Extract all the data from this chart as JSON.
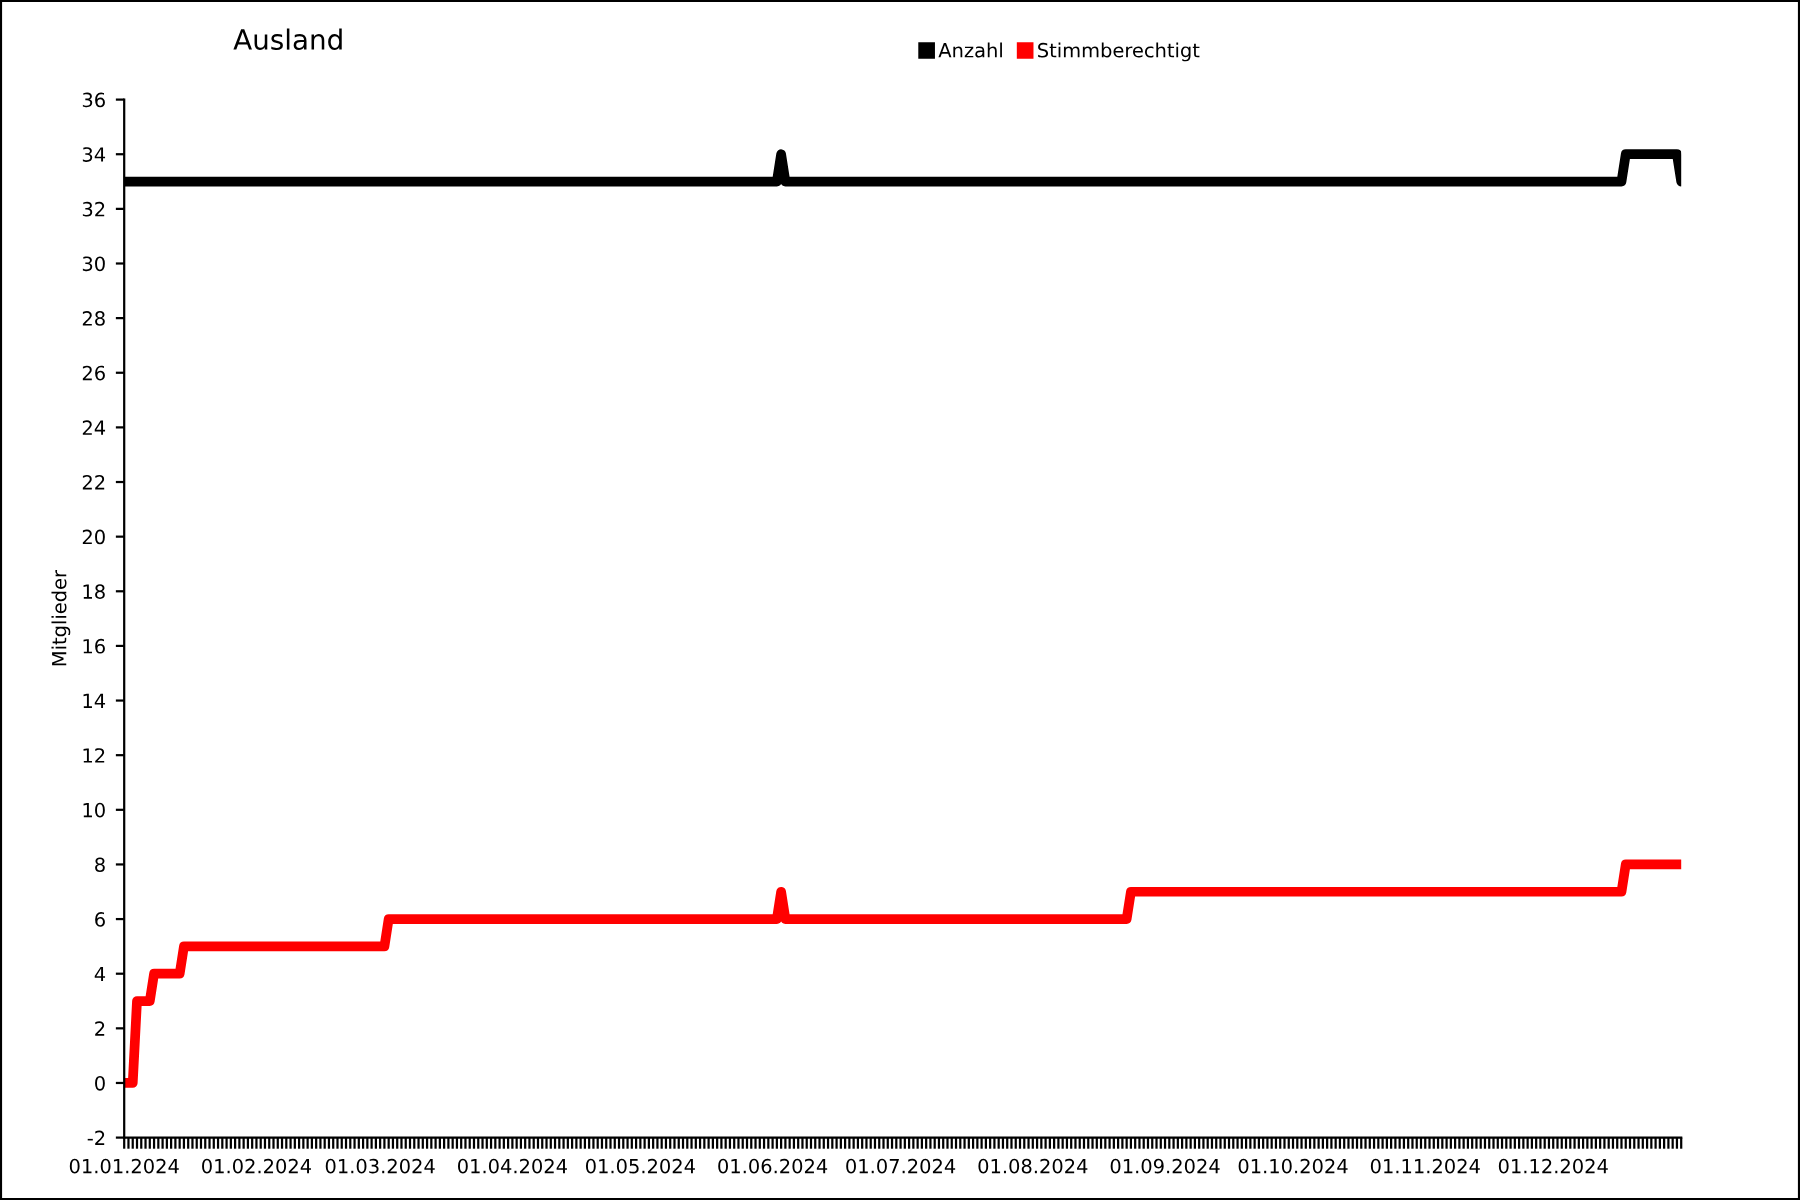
{
  "chart_data": {
    "type": "line",
    "title": "Ausland",
    "ylabel": "Mitglieder",
    "legend": "top",
    "grid": false,
    "line_style": "solid",
    "xlim": [
      "2024-01-01",
      "2024-12-31"
    ],
    "xticks": [
      {
        "value": "2024-01-01",
        "label": "01.01.2024"
      },
      {
        "value": "2024-02-01",
        "label": "01.02.2024"
      },
      {
        "value": "2024-03-01",
        "label": "01.03.2024"
      },
      {
        "value": "2024-04-01",
        "label": "01.04.2024"
      },
      {
        "value": "2024-05-01",
        "label": "01.05.2024"
      },
      {
        "value": "2024-06-01",
        "label": "01.06.2024"
      },
      {
        "value": "2024-07-01",
        "label": "01.07.2024"
      },
      {
        "value": "2024-08-01",
        "label": "01.08.2024"
      },
      {
        "value": "2024-09-01",
        "label": "01.09.2024"
      },
      {
        "value": "2024-10-01",
        "label": "01.10.2024"
      },
      {
        "value": "2024-11-01",
        "label": "01.11.2024"
      },
      {
        "value": "2024-12-01",
        "label": "01.12.2024"
      }
    ],
    "ylim": [
      -2,
      36
    ],
    "yticks": [
      -2,
      0,
      2,
      4,
      6,
      8,
      10,
      12,
      14,
      16,
      18,
      20,
      22,
      24,
      26,
      28,
      30,
      32,
      34,
      36
    ],
    "series": [
      {
        "name": "Anzahl",
        "color": "#000000",
        "x": [
          "2024-01-01",
          "2024-06-02",
          "2024-06-03",
          "2024-06-04",
          "2024-12-17",
          "2024-12-18",
          "2024-12-30",
          "2024-12-31"
        ],
        "values": [
          33,
          33,
          34,
          33,
          33,
          34,
          34,
          33
        ]
      },
      {
        "name": "Stimmberechtigt",
        "color": "#ff0000",
        "x": [
          "2024-01-01",
          "2024-01-03",
          "2024-01-04",
          "2024-01-07",
          "2024-01-08",
          "2024-01-14",
          "2024-01-15",
          "2024-03-02",
          "2024-03-03",
          "2024-06-02",
          "2024-06-03",
          "2024-06-04",
          "2024-08-23",
          "2024-08-24",
          "2024-12-17",
          "2024-12-18",
          "2024-12-31"
        ],
        "values": [
          0,
          0,
          3,
          3,
          4,
          4,
          5,
          5,
          6,
          6,
          7,
          6,
          6,
          7,
          7,
          8,
          8
        ]
      }
    ]
  }
}
